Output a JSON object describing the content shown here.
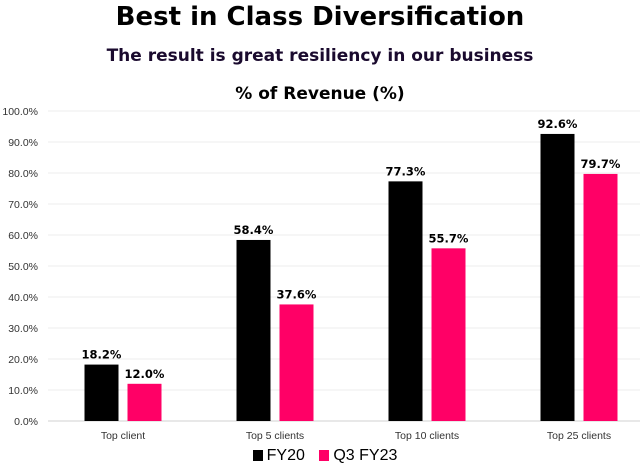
{
  "title": "Best in Class Diversification",
  "subtitle": "The result is great resiliency in our business",
  "chart_data": {
    "type": "bar",
    "title": "% of Revenue (%)",
    "categories": [
      "Top client",
      "Top 5 clients",
      "Top 10 clients",
      "Top 25 clients"
    ],
    "series": [
      {
        "name": "FY20",
        "color": "#000000",
        "values": [
          18.2,
          58.4,
          77.3,
          92.6
        ],
        "labels": [
          "18.2%",
          "58.4%",
          "77.3%",
          "92.6%"
        ]
      },
      {
        "name": "Q3 FY23",
        "color": "#FF0066",
        "values": [
          12.0,
          37.6,
          55.7,
          79.7
        ],
        "labels": [
          "12.0%",
          "37.6%",
          "55.7%",
          "79.7%"
        ]
      }
    ],
    "ylim": [
      0,
      100
    ],
    "yticks": [
      "0.0%",
      "10.0%",
      "20.0%",
      "30.0%",
      "40.0%",
      "50.0%",
      "60.0%",
      "70.0%",
      "80.0%",
      "90.0%",
      "100.0%"
    ],
    "grid": true,
    "legend": "bottom"
  }
}
